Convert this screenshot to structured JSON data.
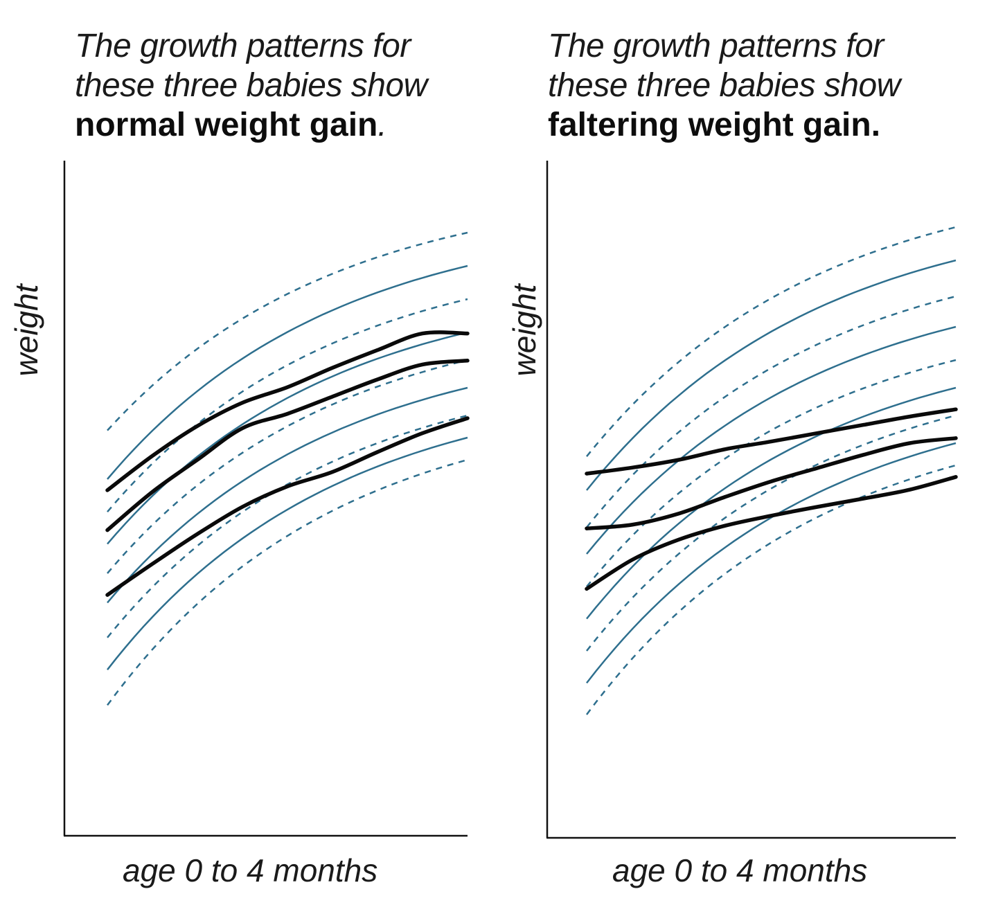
{
  "colors": {
    "reference": "#2e6f8e",
    "baby": "#0a0a0a",
    "axis": "#111111",
    "background": "#ffffff"
  },
  "chart_data": [
    {
      "type": "line",
      "caption": {
        "line1": "The growth patterns for",
        "line2": "these three babies show",
        "emphasis": "normal weight gain",
        "tail": "."
      },
      "xlabel": "age 0 to 4 months",
      "ylabel": "weight",
      "xlim": [
        0,
        4
      ],
      "ylim": [
        0,
        100
      ],
      "grid": false,
      "reference_curves": [
        {
          "style": "dashed",
          "start": 52.3,
          "end": 88
        },
        {
          "style": "solid",
          "start": 43.5,
          "end": 82
        },
        {
          "style": "dashed",
          "start": 37.6,
          "end": 76
        },
        {
          "style": "solid",
          "start": 31.8,
          "end": 70
        },
        {
          "style": "dashed",
          "start": 26.5,
          "end": 65
        },
        {
          "style": "solid",
          "start": 21.2,
          "end": 60
        },
        {
          "style": "dashed",
          "start": 14.9,
          "end": 55
        },
        {
          "style": "solid",
          "start": 9.1,
          "end": 51
        },
        {
          "style": "dashed",
          "start": 2.7,
          "end": 47
        }
      ],
      "series": [
        {
          "x": [
            0,
            0.5,
            1.0,
            1.5,
            2.0,
            2.5,
            3.0,
            3.5,
            4.0
          ],
          "y": [
            41.5,
            47.7,
            53.1,
            57.3,
            60.1,
            63.6,
            66.8,
            69.8,
            69.8
          ]
        },
        {
          "x": [
            0,
            0.5,
            1.0,
            1.5,
            2.0,
            2.5,
            3.0,
            3.5,
            4.0
          ],
          "y": [
            34.3,
            41.2,
            47.0,
            52.7,
            55.3,
            58.4,
            61.5,
            64.2,
            64.9
          ]
        },
        {
          "x": [
            0,
            0.5,
            1.0,
            1.5,
            2.0,
            2.5,
            3.0,
            3.5,
            4.0
          ],
          "y": [
            22.6,
            28.2,
            33.6,
            38.5,
            42.2,
            44.8,
            48.4,
            51.8,
            54.5
          ]
        }
      ]
    },
    {
      "type": "line",
      "caption": {
        "line1": "The growth patterns for",
        "line2": "these three babies show",
        "emphasis": "faltering weight gain.",
        "tail": ""
      },
      "xlabel": "age 0 to 4 months",
      "ylabel": "weight",
      "xlim": [
        0,
        4
      ],
      "ylim": [
        0,
        100
      ],
      "grid": false,
      "reference_curves": [
        {
          "style": "dashed",
          "start": 47.6,
          "end": 89
        },
        {
          "style": "solid",
          "start": 41.5,
          "end": 83
        },
        {
          "style": "dashed",
          "start": 34.8,
          "end": 76.5
        },
        {
          "style": "solid",
          "start": 30.0,
          "end": 71
        },
        {
          "style": "dashed",
          "start": 24.1,
          "end": 65
        },
        {
          "style": "solid",
          "start": 18.3,
          "end": 60
        },
        {
          "style": "dashed",
          "start": 12.5,
          "end": 55
        },
        {
          "style": "solid",
          "start": 6.7,
          "end": 50
        },
        {
          "style": "dashed",
          "start": 1.0,
          "end": 46
        }
      ],
      "series": [
        {
          "x": [
            0,
            0.5,
            1.0,
            1.5,
            2.0,
            2.5,
            3.0,
            3.5,
            4.0
          ],
          "y": [
            44.5,
            45.6,
            47.0,
            48.9,
            50.3,
            51.8,
            53.3,
            54.8,
            56.1
          ]
        },
        {
          "x": [
            0,
            0.5,
            1.0,
            1.5,
            2.0,
            2.5,
            3.0,
            3.5,
            4.0
          ],
          "y": [
            34.6,
            35.3,
            37.3,
            40.3,
            43.1,
            45.5,
            47.9,
            50.0,
            50.9
          ]
        },
        {
          "x": [
            0,
            0.5,
            1.0,
            1.5,
            2.0,
            2.5,
            3.0,
            3.5,
            4.0
          ],
          "y": [
            23.7,
            29.0,
            32.6,
            35.1,
            36.9,
            38.5,
            40.0,
            41.6,
            43.9
          ]
        }
      ]
    }
  ]
}
